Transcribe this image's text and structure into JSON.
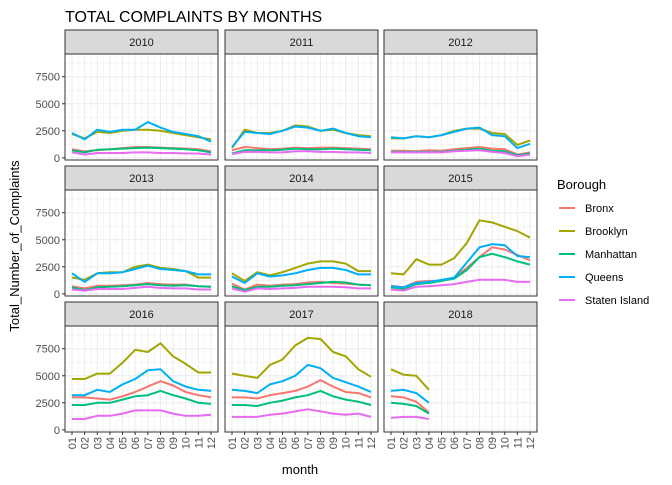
{
  "chart_data": {
    "type": "line",
    "title": "TOTAL COMPLAINTS BY MONTHS",
    "xlabel": "month",
    "ylabel": "Total_Number_of_Complaints",
    "facet_variable": "year",
    "x_ticks": [
      "01",
      "02",
      "03",
      "04",
      "05",
      "06",
      "07",
      "08",
      "09",
      "10",
      "11",
      "12"
    ],
    "y_ticks": [
      0,
      2500,
      5000,
      7500
    ],
    "y_tick_labels": [
      "0",
      "2500",
      "5000",
      "7500"
    ],
    "ylim": [
      -200,
      9600
    ],
    "grid": true,
    "legend": {
      "title": "Borough",
      "placement": "right",
      "entries": [
        "Bronx",
        "Brooklyn",
        "Manhattan",
        "Queens",
        "Staten Island"
      ]
    },
    "colors": {
      "Bronx": "#F8766D",
      "Brooklyn": "#A3A500",
      "Manhattan": "#00BF7D",
      "Queens": "#00B0F6",
      "Staten Island": "#E76BF3"
    },
    "panels": [
      {
        "year": "2010",
        "series": [
          {
            "name": "Bronx",
            "values": [
              800,
              600,
              700,
              800,
              900,
              1000,
              1000,
              950,
              900,
              850,
              800,
              600
            ]
          },
          {
            "name": "Brooklyn",
            "values": [
              2200,
              1800,
              2400,
              2300,
              2500,
              2600,
              2600,
              2500,
              2300,
              2100,
              1900,
              1700
            ]
          },
          {
            "name": "Manhattan",
            "values": [
              700,
              500,
              750,
              800,
              850,
              900,
              950,
              900,
              850,
              800,
              700,
              500
            ]
          },
          {
            "name": "Queens",
            "values": [
              2300,
              1700,
              2600,
              2400,
              2600,
              2600,
              3300,
              2800,
              2400,
              2200,
              2000,
              1500
            ]
          },
          {
            "name": "Staten Island",
            "values": [
              500,
              300,
              450,
              450,
              450,
              500,
              500,
              450,
              450,
              400,
              400,
              300
            ]
          }
        ]
      },
      {
        "year": "2011",
        "series": [
          {
            "name": "Bronx",
            "values": [
              700,
              1000,
              900,
              800,
              850,
              950,
              900,
              950,
              950,
              900,
              850,
              800
            ]
          },
          {
            "name": "Brooklyn",
            "values": [
              900,
              2600,
              2300,
              2300,
              2500,
              3000,
              2900,
              2500,
              2600,
              2300,
              2100,
              2000
            ]
          },
          {
            "name": "Manhattan",
            "values": [
              400,
              700,
              700,
              700,
              750,
              850,
              800,
              800,
              850,
              800,
              750,
              700
            ]
          },
          {
            "name": "Queens",
            "values": [
              1000,
              2400,
              2300,
              2200,
              2500,
              2900,
              2800,
              2500,
              2700,
              2300,
              2000,
              1900
            ]
          },
          {
            "name": "Staten Island",
            "values": [
              350,
              550,
              550,
              500,
              500,
              600,
              600,
              550,
              550,
              500,
              500,
              450
            ]
          }
        ]
      },
      {
        "year": "2012",
        "series": [
          {
            "name": "Bronx",
            "values": [
              650,
              650,
              600,
              700,
              650,
              800,
              900,
              1000,
              850,
              800,
              300,
              500
            ]
          },
          {
            "name": "Brooklyn",
            "values": [
              1800,
              1800,
              2000,
              1900,
              2100,
              2500,
              2700,
              2700,
              2300,
              2200,
              1200,
              1600
            ]
          },
          {
            "name": "Manhattan",
            "values": [
              550,
              550,
              550,
              550,
              550,
              650,
              750,
              850,
              650,
              600,
              250,
              400
            ]
          },
          {
            "name": "Queens",
            "values": [
              1900,
              1800,
              2000,
              1900,
              2100,
              2400,
              2700,
              2800,
              2100,
              2000,
              900,
              1300
            ]
          },
          {
            "name": "Staten Island",
            "values": [
              500,
              500,
              500,
              500,
              500,
              600,
              650,
              700,
              550,
              450,
              150,
              300
            ]
          }
        ]
      },
      {
        "year": "2013",
        "series": [
          {
            "name": "Bronx",
            "values": [
              700,
              500,
              750,
              750,
              800,
              850,
              1000,
              900,
              850,
              850,
              700,
              650
            ]
          },
          {
            "name": "Brooklyn",
            "values": [
              1500,
              1300,
              1900,
              2000,
              2000,
              2500,
              2700,
              2400,
              2300,
              2100,
              1500,
              1500
            ]
          },
          {
            "name": "Manhattan",
            "values": [
              600,
              350,
              600,
              650,
              700,
              800,
              900,
              800,
              750,
              800,
              700,
              650
            ]
          },
          {
            "name": "Queens",
            "values": [
              1900,
              1100,
              1900,
              1900,
              2000,
              2300,
              2600,
              2300,
              2200,
              2100,
              1800,
              1800
            ]
          },
          {
            "name": "Staten Island",
            "values": [
              400,
              300,
              450,
              450,
              450,
              550,
              650,
              550,
              500,
              500,
              400,
              400
            ]
          }
        ]
      },
      {
        "year": "2014",
        "series": [
          {
            "name": "Bronx",
            "values": [
              950,
              400,
              850,
              750,
              850,
              900,
              1050,
              1100,
              1000,
              950,
              850,
              800
            ]
          },
          {
            "name": "Brooklyn",
            "values": [
              1900,
              1200,
              2000,
              1700,
              2000,
              2400,
              2800,
              3000,
              3000,
              2800,
              2100,
              2100
            ]
          },
          {
            "name": "Manhattan",
            "values": [
              700,
              350,
              650,
              650,
              750,
              800,
              900,
              1000,
              1100,
              1050,
              850,
              800
            ]
          },
          {
            "name": "Queens",
            "values": [
              1600,
              1000,
              1900,
              1600,
              1700,
              1900,
              2200,
              2400,
              2400,
              2200,
              1800,
              1800
            ]
          },
          {
            "name": "Staten Island",
            "values": [
              500,
              200,
              500,
              450,
              500,
              550,
              650,
              650,
              650,
              600,
              500,
              500
            ]
          }
        ]
      },
      {
        "year": "2015",
        "series": [
          {
            "name": "Bronx",
            "values": [
              750,
              600,
              1100,
              1200,
              1200,
              1500,
              2400,
              3400,
              4300,
              4100,
              3600,
              3100
            ]
          },
          {
            "name": "Brooklyn",
            "values": [
              1900,
              1800,
              3200,
              2700,
              2700,
              3300,
              4700,
              6800,
              6600,
              6200,
              5800,
              5200
            ]
          },
          {
            "name": "Manhattan",
            "values": [
              600,
              450,
              900,
              1000,
              1200,
              1400,
              2200,
              3400,
              3700,
              3400,
              3000,
              2700
            ]
          },
          {
            "name": "Queens",
            "values": [
              700,
              600,
              1000,
              1100,
              1300,
              1500,
              2900,
              4300,
              4600,
              4500,
              3500,
              3400
            ]
          },
          {
            "name": "Staten Island",
            "values": [
              400,
              300,
              650,
              700,
              800,
              900,
              1100,
              1300,
              1300,
              1300,
              1100,
              1100
            ]
          }
        ]
      },
      {
        "year": "2016",
        "series": [
          {
            "name": "Bronx",
            "values": [
              3000,
              3000,
              2900,
              2800,
              3100,
              3500,
              4000,
              4500,
              4100,
              3500,
              3200,
              3000
            ]
          },
          {
            "name": "Brooklyn",
            "values": [
              4700,
              4700,
              5200,
              5200,
              6200,
              7400,
              7200,
              8000,
              6800,
              6100,
              5300,
              5300
            ]
          },
          {
            "name": "Manhattan",
            "values": [
              2300,
              2300,
              2500,
              2500,
              2800,
              3100,
              3200,
              3600,
              3200,
              2900,
              2500,
              2400
            ]
          },
          {
            "name": "Queens",
            "values": [
              3200,
              3200,
              3700,
              3500,
              4200,
              4700,
              5500,
              5600,
              4500,
              4000,
              3700,
              3600
            ]
          },
          {
            "name": "Staten Island",
            "values": [
              1000,
              1000,
              1300,
              1300,
              1500,
              1800,
              1800,
              1800,
              1500,
              1300,
              1300,
              1400
            ]
          }
        ]
      },
      {
        "year": "2017",
        "series": [
          {
            "name": "Bronx",
            "values": [
              3000,
              3000,
              2900,
              3200,
              3400,
              3600,
              4000,
              4600,
              4000,
              3500,
              3400,
              3000
            ]
          },
          {
            "name": "Brooklyn",
            "values": [
              5200,
              5000,
              4800,
              6000,
              6500,
              7800,
              8500,
              8400,
              7200,
              6800,
              5600,
              4900
            ]
          },
          {
            "name": "Manhattan",
            "values": [
              2300,
              2300,
              2200,
              2500,
              2700,
              3000,
              3200,
              3600,
              3100,
              2800,
              2600,
              2300
            ]
          },
          {
            "name": "Queens",
            "values": [
              3700,
              3600,
              3400,
              4200,
              4500,
              5000,
              6000,
              5700,
              4800,
              4400,
              4000,
              3500
            ]
          },
          {
            "name": "Staten Island",
            "values": [
              1200,
              1200,
              1200,
              1400,
              1500,
              1700,
              1900,
              1700,
              1500,
              1400,
              1500,
              1200
            ]
          }
        ]
      },
      {
        "year": "2018",
        "series": [
          {
            "name": "Bronx",
            "values": [
              3100,
              3000,
              2600,
              1600
            ]
          },
          {
            "name": "Brooklyn",
            "values": [
              5600,
              5100,
              5000,
              3700
            ]
          },
          {
            "name": "Manhattan",
            "values": [
              2500,
              2400,
              2200,
              1500
            ]
          },
          {
            "name": "Queens",
            "values": [
              3600,
              3700,
              3400,
              2500
            ]
          },
          {
            "name": "Staten Island",
            "values": [
              1100,
              1200,
              1200,
              1000
            ]
          }
        ]
      }
    ]
  }
}
